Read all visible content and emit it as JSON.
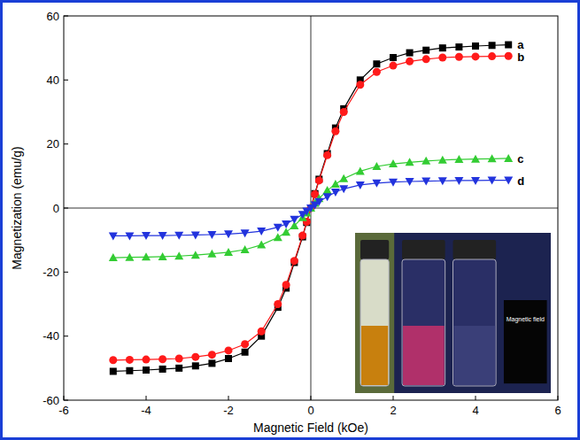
{
  "chart_data": {
    "type": "line",
    "x_label": "Magnetic Field (kOe)",
    "y_label": "Magnetization (emu/g)",
    "x": [
      -4.8,
      -4.4,
      -4.0,
      -3.6,
      -3.2,
      -2.8,
      -2.4,
      -2.0,
      -1.6,
      -1.2,
      -0.8,
      -0.6,
      -0.4,
      -0.2,
      -0.1,
      0,
      0.1,
      0.2,
      0.4,
      0.6,
      0.8,
      1.2,
      1.6,
      2.0,
      2.4,
      2.8,
      3.2,
      3.6,
      4.0,
      4.4,
      4.8
    ],
    "series": [
      {
        "name": "a",
        "color": "#000000",
        "marker": "square",
        "values": [
          -51,
          -50.8,
          -50.6,
          -50.3,
          -50,
          -49.3,
          -48.5,
          -47,
          -45,
          -40,
          -31,
          -25,
          -17,
          -9,
          -4.5,
          0,
          4.5,
          9,
          17,
          25,
          31,
          40,
          45,
          47,
          48.5,
          49.3,
          50,
          50.3,
          50.6,
          50.8,
          51
        ]
      },
      {
        "name": "b",
        "color": "#ff1a1a",
        "marker": "circle",
        "values": [
          -47.5,
          -47.4,
          -47.3,
          -47.2,
          -47,
          -46.5,
          -45.8,
          -44.5,
          -42.5,
          -38.5,
          -30,
          -24,
          -16.5,
          -8.6,
          -4.3,
          0,
          4.3,
          8.6,
          16.5,
          24,
          30,
          38.5,
          42.5,
          44.5,
          45.8,
          46.5,
          47,
          47.2,
          47.3,
          47.4,
          47.5
        ]
      },
      {
        "name": "c",
        "color": "#33cc33",
        "marker": "triangle-up",
        "values": [
          -15.5,
          -15.4,
          -15.3,
          -15.2,
          -15,
          -14.7,
          -14.3,
          -13.8,
          -13,
          -11.5,
          -9.2,
          -7.5,
          -5.5,
          -3,
          -1.5,
          0,
          1.5,
          3,
          5.5,
          7.5,
          9.2,
          11.5,
          13,
          13.8,
          14.3,
          14.7,
          15,
          15.2,
          15.3,
          15.4,
          15.5
        ]
      },
      {
        "name": "d",
        "color": "#2233dd",
        "marker": "triangle-down",
        "values": [
          -8.7,
          -8.7,
          -8.6,
          -8.6,
          -8.5,
          -8.4,
          -8.3,
          -8.1,
          -7.8,
          -7.2,
          -6,
          -5,
          -3.5,
          -2,
          -1,
          0,
          1,
          2,
          3.5,
          5,
          6,
          7.2,
          7.8,
          8.1,
          8.3,
          8.4,
          8.5,
          8.6,
          8.6,
          8.7,
          8.7
        ]
      }
    ],
    "xlim": [
      -6,
      6
    ],
    "xticks": [
      -6,
      -4,
      -2,
      0,
      2,
      4,
      6
    ],
    "ylim": [
      -60,
      60
    ],
    "yticks": [
      -60,
      -40,
      -20,
      0,
      20,
      40,
      60
    ],
    "grid": false,
    "annotations": [
      "Magnetic field"
    ]
  }
}
